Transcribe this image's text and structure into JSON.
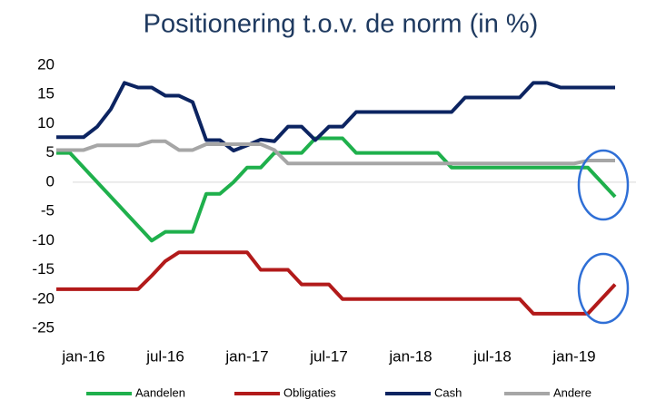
{
  "chart_data": {
    "type": "line",
    "title": "Positionering t.o.v. de norm (in %)",
    "categories": [
      null,
      null,
      "jan-16",
      null,
      null,
      null,
      null,
      null,
      "jul-16",
      null,
      null,
      null,
      null,
      null,
      "jan-17",
      null,
      null,
      null,
      null,
      null,
      "jul-17",
      null,
      null,
      null,
      null,
      null,
      "jan-18",
      null,
      null,
      null,
      null,
      null,
      "jul-18",
      null,
      null,
      null,
      null,
      null,
      "jan-19",
      null,
      null,
      null
    ],
    "series": [
      {
        "name": "Aandelen",
        "color": "#1fb04c",
        "values": [
          5,
          5,
          2.5,
          0,
          -2.5,
          -5,
          -7.5,
          -10,
          -8.5,
          -8.5,
          -8.5,
          -2,
          -2,
          0,
          2.5,
          2.5,
          5,
          5,
          5,
          7.5,
          7.5,
          7.5,
          5,
          5,
          5,
          5,
          5,
          5,
          5,
          2.5,
          2.5,
          2.5,
          2.5,
          2.5,
          2.5,
          2.5,
          2.5,
          2.5,
          2.5,
          2.5,
          0,
          -2.5
        ]
      },
      {
        "name": "Obligaties",
        "color": "#b21a1a",
        "values": [
          -18.3,
          -18.3,
          -18.3,
          -18.3,
          -18.3,
          -18.3,
          -18.3,
          -16,
          -13.5,
          -12,
          -12,
          -12,
          -12,
          -12,
          -12,
          -15,
          -15,
          -15,
          -17.5,
          -17.5,
          -17.5,
          -20,
          -20,
          -20,
          -20,
          -20,
          -20,
          -20,
          -20,
          -20,
          -20,
          -20,
          -20,
          -20,
          -20,
          -22.5,
          -22.5,
          -22.5,
          -22.5,
          -22.5,
          -20,
          -17.5
        ]
      },
      {
        "name": "Cash",
        "color": "#0c2461",
        "values": [
          7.7,
          7.7,
          7.7,
          9.5,
          12.5,
          17,
          16.2,
          16.2,
          14.8,
          14.8,
          13.7,
          7.2,
          7.2,
          5.4,
          6.3,
          7.3,
          7,
          9.5,
          9.5,
          7.2,
          9.5,
          9.5,
          12,
          12,
          12,
          12,
          12,
          12,
          12,
          12,
          14.5,
          14.5,
          14.5,
          14.5,
          14.5,
          17,
          17,
          16.2,
          16.2,
          16.2,
          16.2,
          16.2
        ]
      },
      {
        "name": "Andere",
        "color": "#a6a6a6",
        "values": [
          5.5,
          5.5,
          5.5,
          6.3,
          6.3,
          6.3,
          6.3,
          7,
          7,
          5.5,
          5.5,
          6.5,
          6.5,
          6.5,
          6.5,
          6.5,
          5.5,
          3.2,
          3.2,
          3.2,
          3.2,
          3.2,
          3.2,
          3.2,
          3.2,
          3.2,
          3.2,
          3.2,
          3.2,
          3.2,
          3.2,
          3.2,
          3.2,
          3.2,
          3.2,
          3.2,
          3.2,
          3.2,
          3.2,
          3.7,
          3.7,
          3.7
        ]
      }
    ],
    "ylim": [
      -25,
      20
    ],
    "yticks": [
      20,
      15,
      10,
      5,
      0,
      -5,
      -10,
      -15,
      -20,
      -25
    ]
  }
}
